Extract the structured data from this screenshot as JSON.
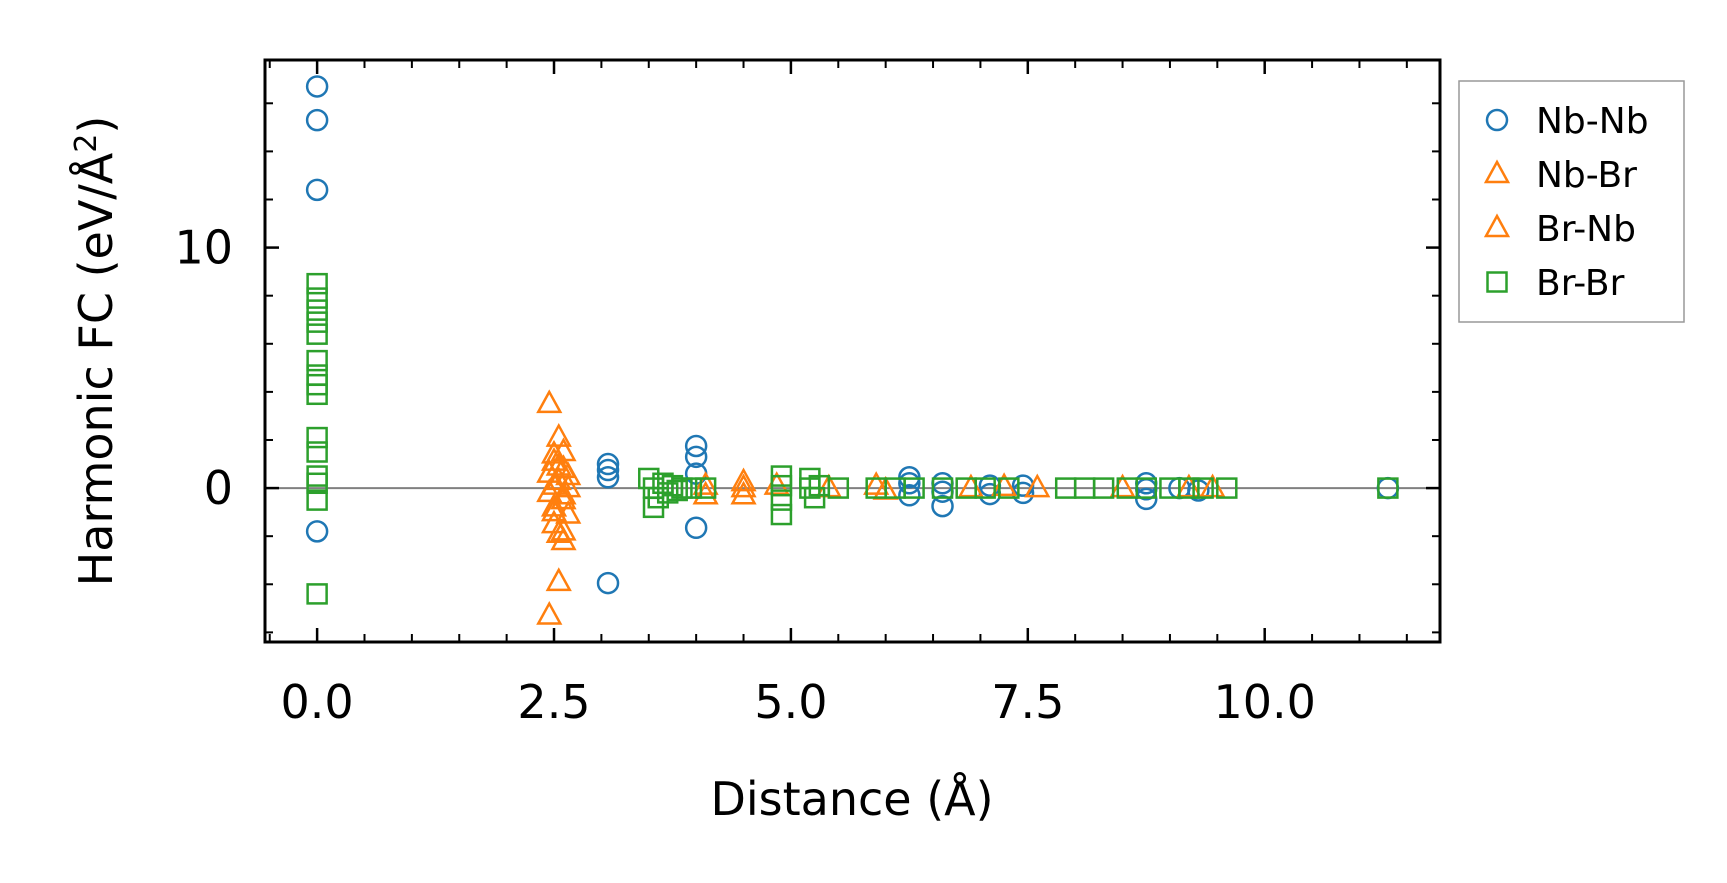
{
  "chart_data": {
    "type": "scatter",
    "title": "",
    "xlabel": "Distance (Å)",
    "ylabel_main": "Harmonic FC (eV/Å",
    "ylabel_sup": "2",
    "ylabel_close": ")",
    "xlim": [
      -0.55,
      11.85
    ],
    "ylim": [
      -6.4,
      17.8
    ],
    "xticks": [
      0.0,
      2.5,
      5.0,
      7.5,
      10.0
    ],
    "xtick_labels": [
      "0.0",
      "2.5",
      "5.0",
      "7.5",
      "10.0"
    ],
    "yticks": [
      0,
      10
    ],
    "ytick_labels": [
      "0",
      "10"
    ],
    "x_minor_step": 0.5,
    "y_minor_step": 2,
    "zero_line": true,
    "grid": false,
    "legend_position": "outside-right",
    "series": [
      {
        "name": "Nb-Nb",
        "marker": "circle",
        "color": "#1f77b4",
        "points": [
          [
            0.0,
            16.7
          ],
          [
            0.0,
            15.3
          ],
          [
            0.0,
            12.4
          ],
          [
            0.0,
            -1.8
          ],
          [
            3.07,
            1.0
          ],
          [
            3.07,
            0.75
          ],
          [
            3.07,
            0.45
          ],
          [
            3.07,
            -3.95
          ],
          [
            4.0,
            1.75
          ],
          [
            4.0,
            1.3
          ],
          [
            4.0,
            0.6
          ],
          [
            4.0,
            -1.65
          ],
          [
            6.25,
            0.45
          ],
          [
            6.25,
            0.2
          ],
          [
            6.25,
            -0.3
          ],
          [
            6.6,
            0.2
          ],
          [
            6.6,
            -0.15
          ],
          [
            6.6,
            -0.75
          ],
          [
            7.1,
            0.1
          ],
          [
            7.1,
            -0.25
          ],
          [
            7.45,
            0.1
          ],
          [
            7.45,
            -0.2
          ],
          [
            8.75,
            0.2
          ],
          [
            8.75,
            -0.05
          ],
          [
            8.75,
            -0.45
          ],
          [
            9.1,
            0.0
          ],
          [
            9.3,
            -0.1
          ],
          [
            11.3,
            0.0
          ]
        ]
      },
      {
        "name": "Nb-Br",
        "marker": "triangle",
        "color": "#ff7f0e",
        "points": [
          [
            2.45,
            3.5
          ],
          [
            2.55,
            2.1
          ],
          [
            2.6,
            1.5
          ],
          [
            2.5,
            1.1
          ],
          [
            2.6,
            0.8
          ],
          [
            2.45,
            0.6
          ],
          [
            2.55,
            0.3
          ],
          [
            2.65,
            0.0
          ],
          [
            2.45,
            -0.2
          ],
          [
            2.6,
            -0.5
          ],
          [
            2.5,
            -0.8
          ],
          [
            2.65,
            -1.1
          ],
          [
            2.5,
            -1.5
          ],
          [
            2.55,
            -1.9
          ],
          [
            2.6,
            -2.2
          ],
          [
            2.55,
            -3.9
          ],
          [
            2.45,
            -5.3
          ],
          [
            4.1,
            0.1
          ],
          [
            4.1,
            -0.3
          ],
          [
            4.5,
            0.25
          ],
          [
            4.5,
            -0.3
          ],
          [
            4.85,
            0.1
          ],
          [
            5.4,
            0.0
          ],
          [
            5.9,
            0.1
          ],
          [
            6.0,
            -0.1
          ],
          [
            7.25,
            0.05
          ],
          [
            8.5,
            0.0
          ],
          [
            9.2,
            0.0
          ]
        ]
      },
      {
        "name": "Br-Nb",
        "marker": "triangle",
        "color": "#ff7f0e",
        "points": [
          [
            2.5,
            1.4
          ],
          [
            2.55,
            0.9
          ],
          [
            2.65,
            0.5
          ],
          [
            2.5,
            0.1
          ],
          [
            2.6,
            -0.3
          ],
          [
            2.5,
            -1.0
          ],
          [
            2.6,
            -1.8
          ],
          [
            4.5,
            0.0
          ],
          [
            6.9,
            0.0
          ],
          [
            7.6,
            0.0
          ],
          [
            9.45,
            0.0
          ]
        ]
      },
      {
        "name": "Br-Br",
        "marker": "square",
        "color": "#2ca02c",
        "points": [
          [
            0.0,
            8.5
          ],
          [
            0.0,
            7.9
          ],
          [
            0.0,
            7.4
          ],
          [
            0.0,
            6.9
          ],
          [
            0.0,
            6.4
          ],
          [
            0.0,
            5.3
          ],
          [
            0.0,
            4.7
          ],
          [
            0.0,
            4.3
          ],
          [
            0.0,
            3.9
          ],
          [
            0.0,
            2.1
          ],
          [
            0.0,
            1.5
          ],
          [
            0.0,
            0.5
          ],
          [
            0.0,
            0.2
          ],
          [
            0.0,
            -0.5
          ],
          [
            0.0,
            -4.4
          ],
          [
            3.5,
            0.4
          ],
          [
            3.55,
            0.0
          ],
          [
            3.6,
            -0.4
          ],
          [
            3.55,
            -0.8
          ],
          [
            3.65,
            0.2
          ],
          [
            3.7,
            -0.2
          ],
          [
            3.75,
            0.1
          ],
          [
            3.8,
            -0.1
          ],
          [
            3.85,
            0.0
          ],
          [
            3.95,
            0.0
          ],
          [
            4.1,
            0.0
          ],
          [
            4.9,
            0.5
          ],
          [
            4.9,
            0.1
          ],
          [
            4.9,
            -0.5
          ],
          [
            4.9,
            -1.1
          ],
          [
            5.2,
            0.4
          ],
          [
            5.2,
            0.0
          ],
          [
            5.25,
            -0.4
          ],
          [
            5.3,
            0.1
          ],
          [
            5.5,
            0.0
          ],
          [
            5.9,
            0.0
          ],
          [
            6.1,
            0.0
          ],
          [
            6.3,
            0.0
          ],
          [
            6.6,
            0.0
          ],
          [
            6.85,
            0.0
          ],
          [
            7.05,
            0.0
          ],
          [
            7.3,
            0.0
          ],
          [
            7.9,
            0.0
          ],
          [
            8.1,
            0.0
          ],
          [
            8.3,
            0.0
          ],
          [
            8.55,
            0.0
          ],
          [
            8.75,
            0.0
          ],
          [
            9.0,
            0.0
          ],
          [
            9.2,
            0.0
          ],
          [
            9.35,
            0.0
          ],
          [
            9.6,
            0.0
          ],
          [
            11.3,
            0.0
          ]
        ]
      }
    ]
  }
}
